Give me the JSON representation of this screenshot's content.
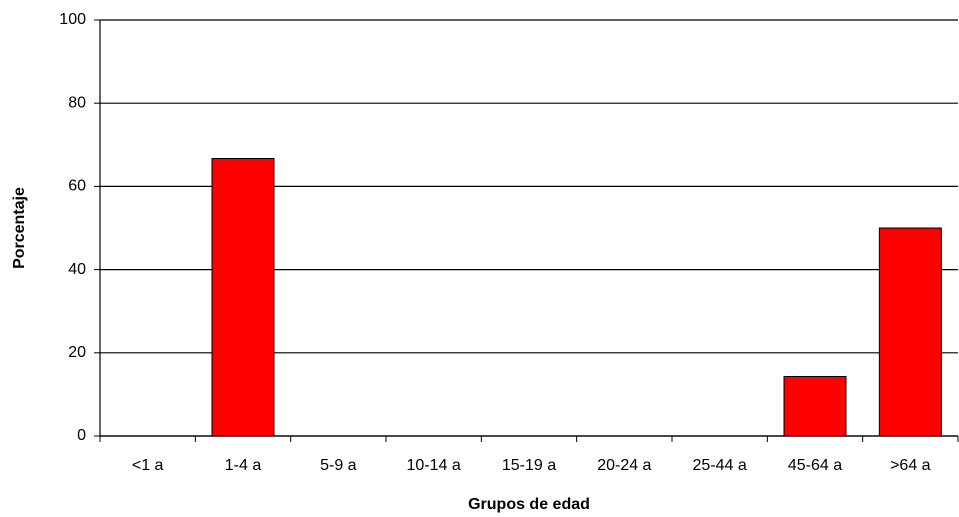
{
  "chart_data": {
    "type": "bar",
    "x_label": "Grupos de edad",
    "y_label": "Porcentaje",
    "categories": [
      "<1 a",
      "1-4 a",
      "5-9 a",
      "10-14 a",
      "15-19 a",
      "20-24 a",
      "25-44 a",
      "45-64 a",
      ">64 a"
    ],
    "values": [
      0,
      66.7,
      0,
      0,
      0,
      0,
      0,
      14.3,
      50
    ],
    "color": "#ff0000",
    "ylim": [
      0,
      100
    ],
    "yticks": [
      0,
      20,
      40,
      60,
      80,
      100
    ],
    "grid": true
  }
}
